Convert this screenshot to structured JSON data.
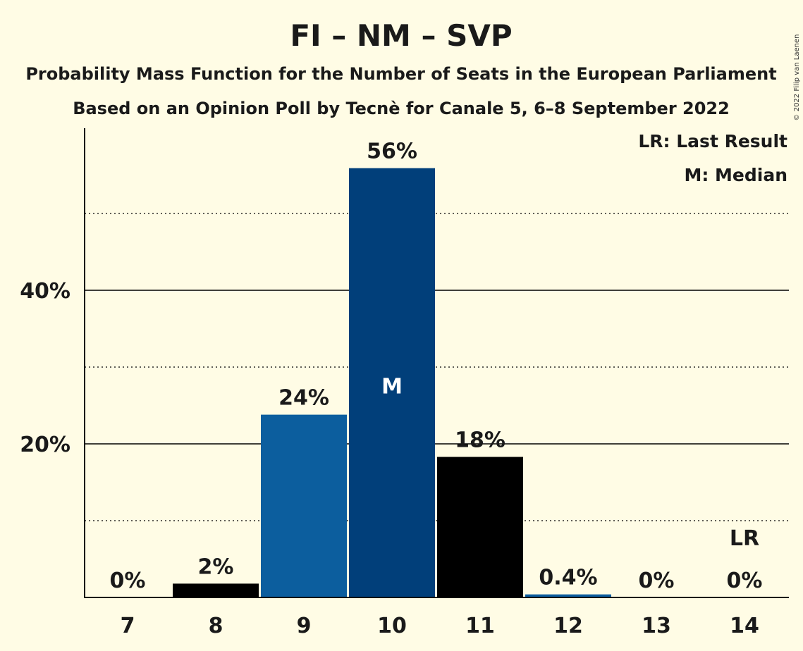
{
  "title": "FI – NM – SVP",
  "subtitle1": "Probability Mass Function for the Number of Seats in the European Parliament",
  "subtitle2": "Based on an Opinion Poll by Tecnè for Canale 5, 6–8 September 2022",
  "copyright": "© 2022 Filip van Laenen",
  "legend": {
    "lr": "LR: Last Result",
    "m": "M: Median"
  },
  "colors": {
    "background": "#FFFCE5",
    "blue_light": "#0C5E9E",
    "blue_dark": "#013F7A",
    "black": "#000000"
  },
  "chart_data": {
    "type": "bar",
    "categories": [
      "7",
      "8",
      "9",
      "10",
      "11",
      "12",
      "13",
      "14"
    ],
    "values": [
      0,
      1.8,
      23.8,
      55.9,
      18.3,
      0.4,
      0,
      0
    ],
    "labels": [
      "0%",
      "2%",
      "24%",
      "56%",
      "18%",
      "0.4%",
      "0%",
      "0%"
    ],
    "bar_colors": [
      "#000000",
      "#000000",
      "#0C5E9E",
      "#013F7A",
      "#000000",
      "#0C5E9E",
      "#000000",
      "#000000"
    ],
    "ylim": [
      0,
      61
    ],
    "yticks": [
      20,
      40
    ],
    "ytick_labels": [
      "20%",
      "40%"
    ],
    "minor_gridlines": [
      10,
      30,
      50
    ],
    "median_index": 3,
    "median_marker": "M",
    "last_result_index": 7,
    "last_result_marker": "LR",
    "grid": true,
    "legend_position": "top-right"
  }
}
